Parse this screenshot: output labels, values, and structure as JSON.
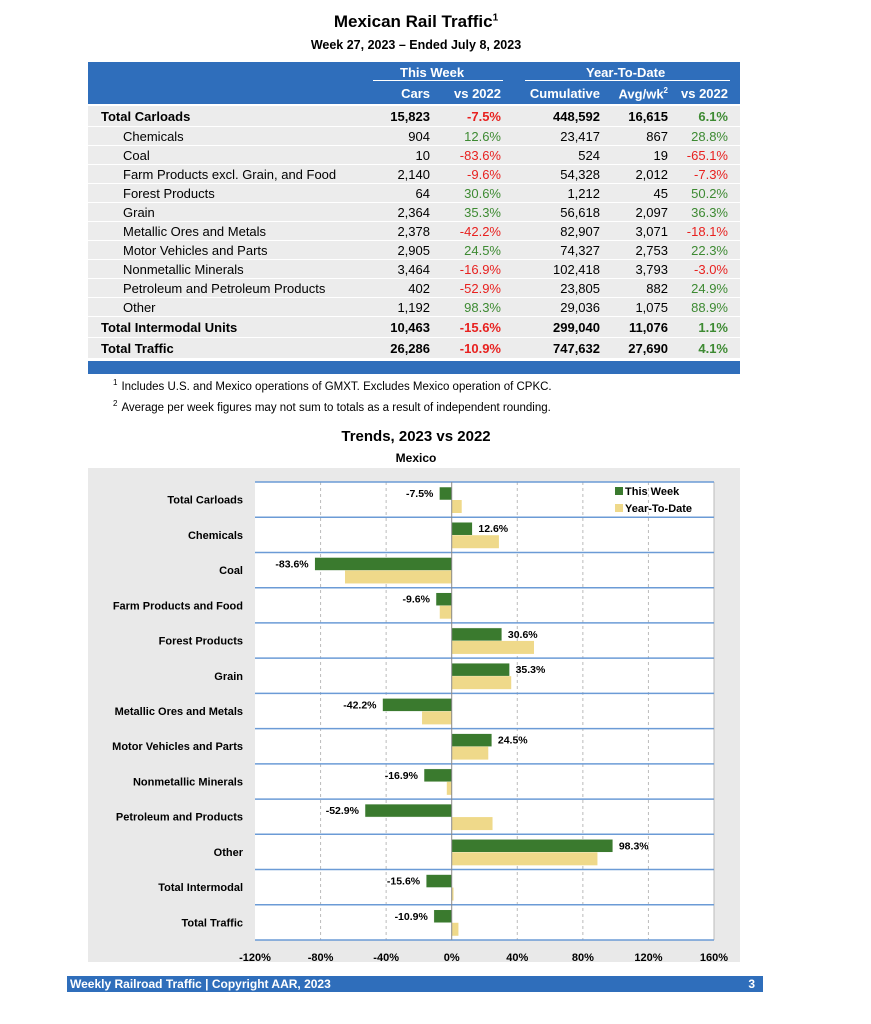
{
  "header": {
    "title": "Mexican Rail Traffic",
    "title_sup": "1",
    "subtitle": "Week 27, 2023 – Ended July 8, 2023"
  },
  "table": {
    "group_this_week": "This Week",
    "group_ytd": "Year-To-Date",
    "columns": [
      "Cars",
      "vs 2022",
      "Cumulative",
      "Avg/wk",
      "vs 2022"
    ],
    "avg_sup": "2",
    "rows": [
      {
        "label": "Total Carloads",
        "bold": true,
        "cells": [
          "15,823",
          "-7.5%",
          "448,592",
          "16,615",
          "6.1%"
        ]
      },
      {
        "label": "Chemicals",
        "cells": [
          "904",
          "12.6%",
          "23,417",
          "867",
          "28.8%"
        ]
      },
      {
        "label": "Coal",
        "cells": [
          "10",
          "-83.6%",
          "524",
          "19",
          "-65.1%"
        ]
      },
      {
        "label": "Farm Products excl. Grain, and Food",
        "cells": [
          "2,140",
          "-9.6%",
          "54,328",
          "2,012",
          "-7.3%"
        ]
      },
      {
        "label": "Forest Products",
        "cells": [
          "64",
          "30.6%",
          "1,212",
          "45",
          "50.2%"
        ]
      },
      {
        "label": "Grain",
        "cells": [
          "2,364",
          "35.3%",
          "56,618",
          "2,097",
          "36.3%"
        ]
      },
      {
        "label": "Metallic Ores and Metals",
        "cells": [
          "2,378",
          "-42.2%",
          "82,907",
          "3,071",
          "-18.1%"
        ]
      },
      {
        "label": "Motor Vehicles and Parts",
        "cells": [
          "2,905",
          "24.5%",
          "74,327",
          "2,753",
          "22.3%"
        ]
      },
      {
        "label": "Nonmetallic Minerals",
        "cells": [
          "3,464",
          "-16.9%",
          "102,418",
          "3,793",
          "-3.0%"
        ]
      },
      {
        "label": "Petroleum and Petroleum Products",
        "cells": [
          "402",
          "-52.9%",
          "23,805",
          "882",
          "24.9%"
        ]
      },
      {
        "label": "Other",
        "cells": [
          "1,192",
          "98.3%",
          "29,036",
          "1,075",
          "88.9%"
        ]
      },
      {
        "label": "Total Intermodal Units",
        "bold": true,
        "cells": [
          "10,463",
          "-15.6%",
          "299,040",
          "11,076",
          "1.1%"
        ]
      },
      {
        "label": "Total Traffic",
        "bold": true,
        "cells": [
          "26,286",
          "-10.9%",
          "747,632",
          "27,690",
          "4.1%"
        ]
      }
    ]
  },
  "footnotes": [
    {
      "mark": "1",
      "text": "Includes U.S. and Mexico operations of GMXT. Excludes Mexico operation of CPKC."
    },
    {
      "mark": "2",
      "text": "Average per week figures may not sum to totals as a result of independent rounding."
    }
  ],
  "colors": {
    "blue": "#2f6ebb",
    "negative": "#e8211f",
    "positive": "#3d8a32",
    "this_week": "#3a7a2e",
    "ytd": "#efd98a"
  },
  "chart_data": {
    "type": "bar",
    "orientation": "horizontal",
    "title": "Trends, 2023 vs 2022",
    "subtitle": "Mexico",
    "categories": [
      "Total Carloads",
      "Chemicals",
      "Coal",
      "Farm Products and Food",
      "Forest Products",
      "Grain",
      "Metallic Ores and Metals",
      "Motor Vehicles and Parts",
      "Nonmetallic Minerals",
      "Petroleum and Products",
      "Other",
      "Total Intermodal",
      "Total Traffic"
    ],
    "series": [
      {
        "name": "This Week",
        "values": [
          -7.5,
          12.6,
          -83.6,
          -9.6,
          30.6,
          35.3,
          -42.2,
          24.5,
          -16.9,
          -52.9,
          98.3,
          -15.6,
          -10.9
        ],
        "labels": [
          "-7.5%",
          "12.6%",
          "-83.6%",
          "-9.6%",
          "30.6%",
          "35.3%",
          "-42.2%",
          "24.5%",
          "-16.9%",
          "-52.9%",
          "98.3%",
          "-15.6%",
          "-10.9%"
        ]
      },
      {
        "name": "Year-To-Date",
        "values": [
          6.1,
          28.8,
          -65.1,
          -7.3,
          50.2,
          36.3,
          -18.1,
          22.3,
          -3.0,
          24.9,
          88.9,
          1.1,
          4.1
        ]
      }
    ],
    "xlim": [
      -120,
      160
    ],
    "xticks": [
      "-120%",
      "-80%",
      "-40%",
      "0%",
      "40%",
      "80%",
      "120%",
      "160%"
    ],
    "xtick_values": [
      -120,
      -80,
      -40,
      0,
      40,
      80,
      120,
      160
    ],
    "grid": true,
    "legend": "top-right"
  },
  "footer": {
    "text": "Weekly Railroad Traffic | Copyright AAR, 2023",
    "page": "3"
  }
}
